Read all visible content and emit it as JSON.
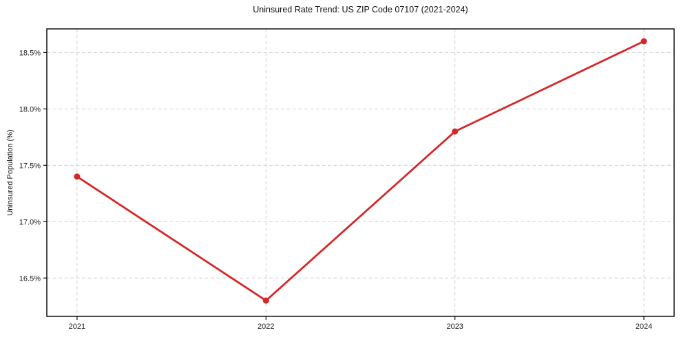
{
  "chart_data": {
    "type": "line",
    "title": "Uninsured Rate Trend: US ZIP Code 07107 (2021-2024)",
    "xlabel": "",
    "ylabel": "Uninsured Population (%)",
    "x": [
      2021,
      2022,
      2023,
      2024
    ],
    "x_labels": [
      "2021",
      "2022",
      "2023",
      "2024"
    ],
    "series": [
      {
        "name": "Uninsured Population (%)",
        "values": [
          17.4,
          16.3,
          17.8,
          18.6
        ]
      }
    ],
    "ytick_values": [
      16.5,
      17.0,
      17.5,
      18.0,
      18.5
    ],
    "ytick_labels": [
      "16.5%",
      "17.0%",
      "17.5%",
      "18.0%",
      "18.5%"
    ],
    "xlim": [
      2020.84,
      2024.16
    ],
    "ylim": [
      16.16,
      18.71
    ],
    "grid": "dashed-both",
    "legend": "none",
    "line_color": "#d62728",
    "marker_color": "#d62728",
    "grid_color": "#cfcfcf",
    "spine_color": "#000000",
    "tick_label_color": "#1a1a1a",
    "background_color": "#ffffff"
  }
}
